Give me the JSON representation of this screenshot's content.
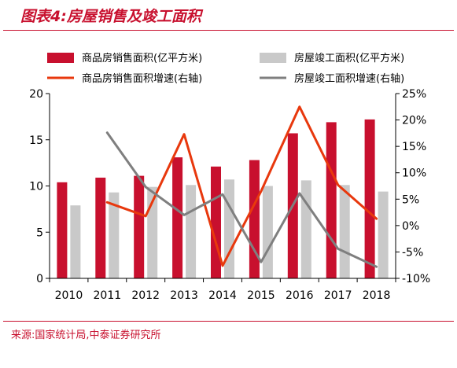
{
  "title": "图表4:房屋销售及竣工面积",
  "source": "来源:国家统计局,中泰证券研究所",
  "colors": {
    "accent": "#c8102e",
    "bar1": "#c8102e",
    "bar2": "#c9c9c9",
    "line1": "#e8380d",
    "line2": "#7f7f7f"
  },
  "chart_data": {
    "type": "bar",
    "categories": [
      "2010",
      "2011",
      "2012",
      "2013",
      "2014",
      "2015",
      "2016",
      "2017",
      "2018"
    ],
    "series": [
      {
        "name": "商品房销售面积(亿平方米)",
        "type": "bar",
        "axis": "left",
        "values": [
          10.4,
          10.9,
          11.1,
          13.1,
          12.1,
          12.8,
          15.7,
          16.9,
          17.2
        ]
      },
      {
        "name": "房屋竣工面积(亿平方米)",
        "type": "bar",
        "axis": "left",
        "values": [
          7.9,
          9.3,
          9.9,
          10.1,
          10.7,
          10.0,
          10.6,
          10.1,
          9.4
        ]
      },
      {
        "name": "商品房销售面积增速(右轴)",
        "type": "line",
        "axis": "right",
        "values": [
          null,
          4.4,
          1.8,
          17.3,
          -7.6,
          6.5,
          22.5,
          7.7,
          1.3
        ]
      },
      {
        "name": "房屋竣工面积增速(右轴)",
        "type": "line",
        "axis": "right",
        "values": [
          null,
          17.6,
          7.3,
          2.0,
          5.9,
          -6.9,
          6.1,
          -4.4,
          -7.8
        ]
      }
    ],
    "y_left": {
      "ylim": [
        0,
        20
      ],
      "ticks": [
        "0",
        "5",
        "10",
        "15",
        "20"
      ]
    },
    "y_right": {
      "ylim": [
        -10,
        25
      ],
      "ticks": [
        "-10%",
        "-5%",
        "0%",
        "5%",
        "10%",
        "15%",
        "20%",
        "25%"
      ]
    },
    "legend": "top",
    "grid": false
  }
}
